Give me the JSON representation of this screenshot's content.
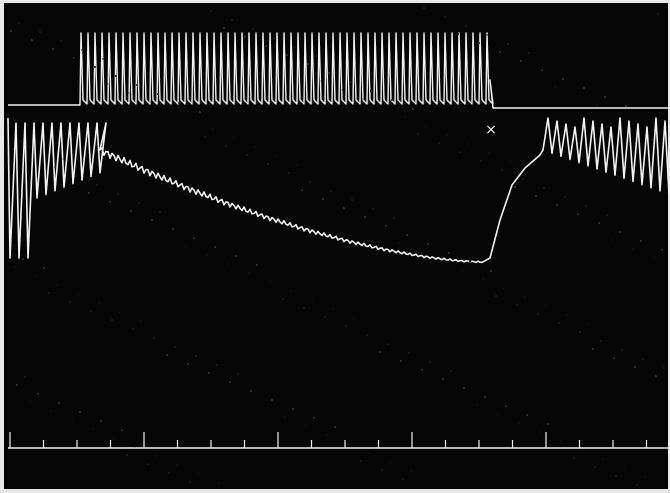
{
  "marker": "×"
}
